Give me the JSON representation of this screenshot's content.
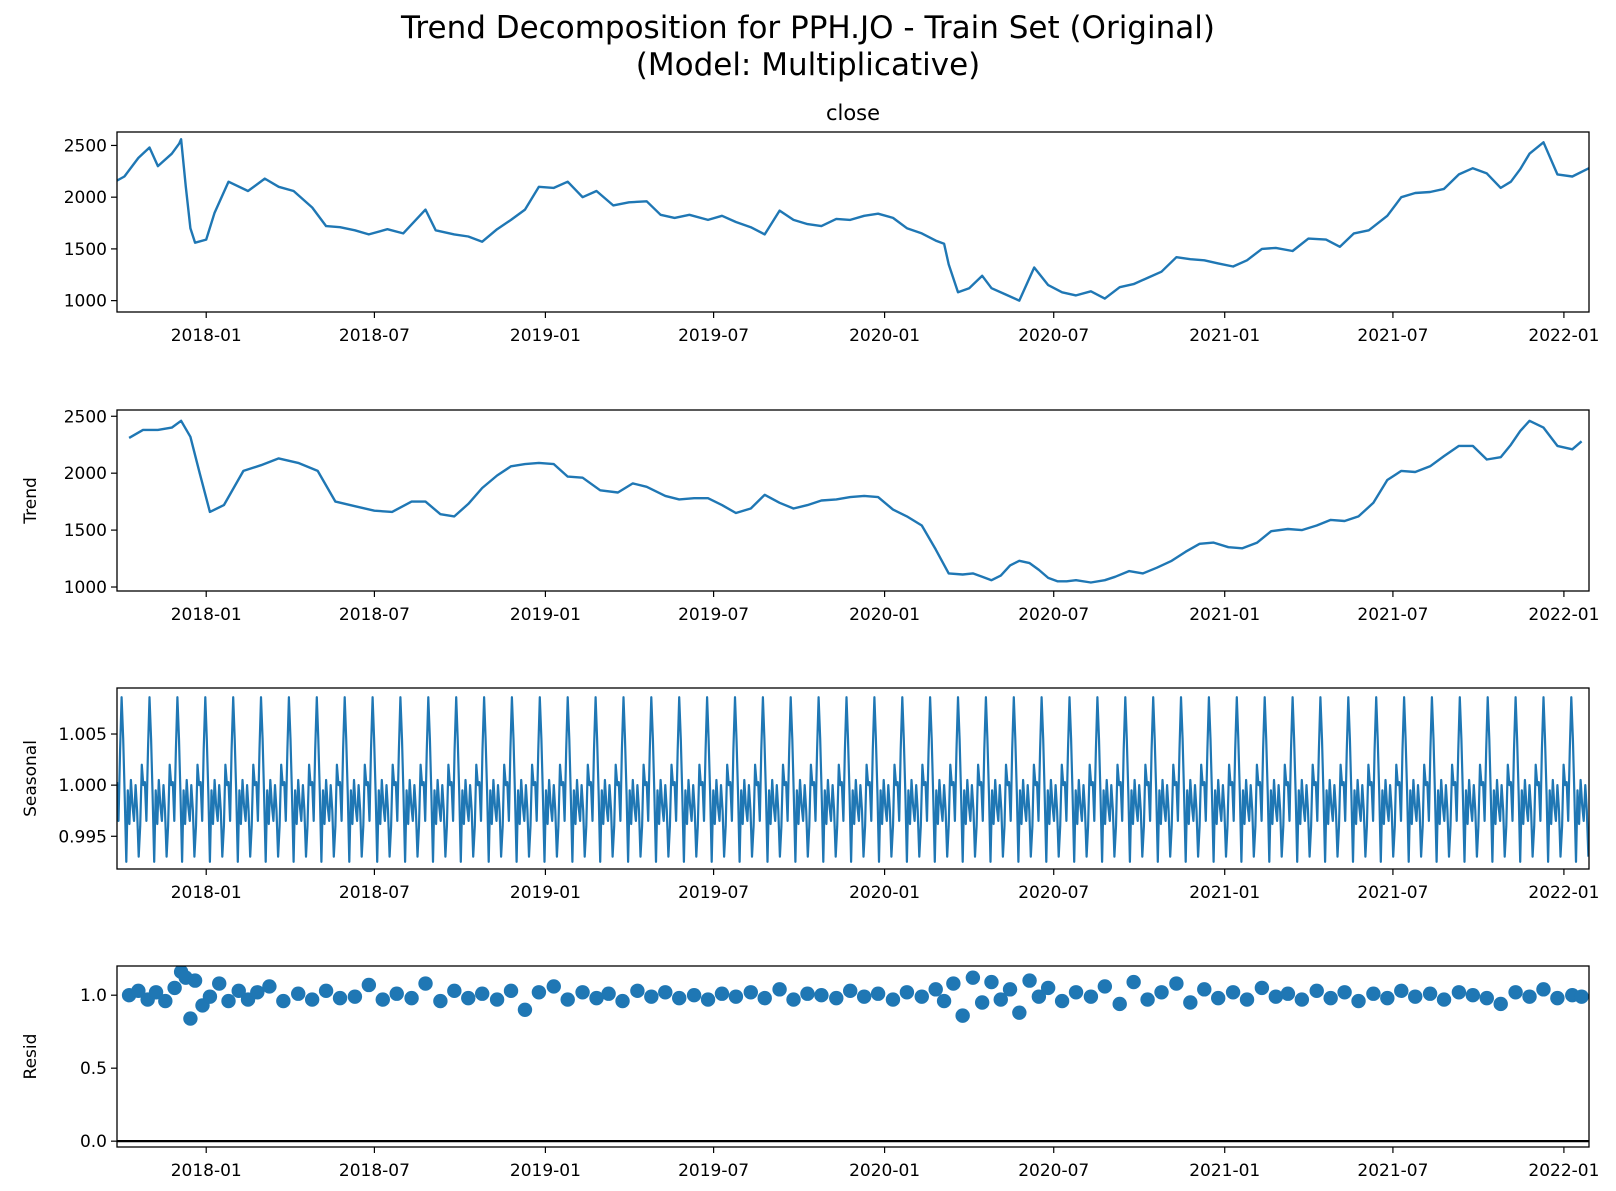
{
  "title_line1": "Trend Decomposition for PPH.JO - Train Set (Original)",
  "title_line2": "(Model: Multiplicative)",
  "line_color": "#1f77b4",
  "chart_data": [
    {
      "type": "line",
      "title": "close",
      "ylabel": "",
      "xlim": [
        "2017-09-27",
        "2022-01-28"
      ],
      "ylim": [
        890,
        2630
      ],
      "yticks": [
        1000,
        1500,
        2000,
        2500
      ],
      "ytick_labels": [
        "1000",
        "1500",
        "2000",
        "2500"
      ],
      "xticks": [
        "2018-01-01",
        "2018-07-01",
        "2019-01-01",
        "2019-07-01",
        "2020-01-01",
        "2020-07-01",
        "2021-01-01",
        "2021-07-01",
        "2022-01-01"
      ],
      "xtick_labels": [
        "2018-01",
        "2018-07",
        "2019-01",
        "2019-07",
        "2020-01",
        "2020-07",
        "2021-01",
        "2021-07",
        "2022-01"
      ],
      "x": [
        "2017-09-27",
        "2017-10-05",
        "2017-10-20",
        "2017-11-01",
        "2017-11-10",
        "2017-11-25",
        "2017-12-03",
        "2017-12-05",
        "2017-12-10",
        "2017-12-15",
        "2017-12-20",
        "2018-01-01",
        "2018-01-10",
        "2018-01-25",
        "2018-02-15",
        "2018-03-05",
        "2018-03-20",
        "2018-04-05",
        "2018-04-25",
        "2018-05-10",
        "2018-05-25",
        "2018-06-10",
        "2018-06-25",
        "2018-07-15",
        "2018-08-01",
        "2018-08-25",
        "2018-09-05",
        "2018-09-25",
        "2018-10-10",
        "2018-10-25",
        "2018-11-10",
        "2018-11-25",
        "2018-12-10",
        "2018-12-25",
        "2019-01-10",
        "2019-01-25",
        "2019-02-10",
        "2019-02-25",
        "2019-03-15",
        "2019-04-01",
        "2019-04-20",
        "2019-05-05",
        "2019-05-20",
        "2019-06-05",
        "2019-06-25",
        "2019-07-10",
        "2019-07-25",
        "2019-08-10",
        "2019-08-25",
        "2019-09-10",
        "2019-09-25",
        "2019-10-10",
        "2019-10-25",
        "2019-11-10",
        "2019-11-25",
        "2019-12-10",
        "2019-12-25",
        "2020-01-10",
        "2020-01-25",
        "2020-02-10",
        "2020-02-25",
        "2020-03-05",
        "2020-03-10",
        "2020-03-20",
        "2020-04-01",
        "2020-04-15",
        "2020-04-25",
        "2020-05-10",
        "2020-05-25",
        "2020-06-10",
        "2020-06-25",
        "2020-07-10",
        "2020-07-25",
        "2020-08-10",
        "2020-08-25",
        "2020-09-10",
        "2020-09-25",
        "2020-10-10",
        "2020-10-25",
        "2020-11-10",
        "2020-11-25",
        "2020-12-10",
        "2020-12-25",
        "2021-01-10",
        "2021-01-25",
        "2021-02-10",
        "2021-02-25",
        "2021-03-15",
        "2021-04-01",
        "2021-04-20",
        "2021-05-05",
        "2021-05-20",
        "2021-06-05",
        "2021-06-25",
        "2021-07-10",
        "2021-07-25",
        "2021-08-10",
        "2021-08-25",
        "2021-09-10",
        "2021-09-25",
        "2021-10-10",
        "2021-10-25",
        "2021-11-05",
        "2021-11-15",
        "2021-11-25",
        "2021-12-10",
        "2021-12-25",
        "2022-01-10",
        "2022-01-28"
      ],
      "y": [
        2160,
        2200,
        2380,
        2480,
        2300,
        2420,
        2520,
        2560,
        2100,
        1700,
        1560,
        1590,
        1850,
        2150,
        2060,
        2180,
        2100,
        2060,
        1900,
        1720,
        1710,
        1680,
        1640,
        1690,
        1650,
        1880,
        1680,
        1640,
        1620,
        1570,
        1690,
        1780,
        1880,
        2100,
        2090,
        2150,
        2000,
        2060,
        1920,
        1950,
        1960,
        1830,
        1800,
        1830,
        1780,
        1820,
        1760,
        1710,
        1640,
        1870,
        1780,
        1740,
        1720,
        1790,
        1780,
        1820,
        1840,
        1800,
        1700,
        1650,
        1580,
        1550,
        1350,
        1080,
        1120,
        1240,
        1120,
        1060,
        1000,
        1320,
        1150,
        1080,
        1050,
        1090,
        1020,
        1130,
        1160,
        1220,
        1280,
        1420,
        1400,
        1390,
        1360,
        1330,
        1390,
        1500,
        1510,
        1480,
        1600,
        1590,
        1520,
        1650,
        1680,
        1820,
        2000,
        2040,
        2050,
        2080,
        2220,
        2280,
        2230,
        2090,
        2150,
        2270,
        2420,
        2530,
        2220,
        2200,
        2280
      ]
    },
    {
      "type": "line",
      "title": "",
      "ylabel": "Trend",
      "xlim": [
        "2017-09-27",
        "2022-01-28"
      ],
      "ylim": [
        965,
        2555
      ],
      "yticks": [
        1000,
        1500,
        2000,
        2500
      ],
      "ytick_labels": [
        "1000",
        "1500",
        "2000",
        "2500"
      ],
      "xticks": [
        "2018-01-01",
        "2018-07-01",
        "2019-01-01",
        "2019-07-01",
        "2020-01-01",
        "2020-07-01",
        "2021-01-01",
        "2021-07-01",
        "2022-01-01"
      ],
      "xtick_labels": [
        "2018-01",
        "2018-07",
        "2019-01",
        "2019-07",
        "2020-01",
        "2020-07",
        "2021-01",
        "2021-07",
        "2022-01"
      ],
      "x": [
        "2017-10-10",
        "2017-10-25",
        "2017-11-10",
        "2017-11-25",
        "2017-12-05",
        "2017-12-15",
        "2017-12-25",
        "2018-01-05",
        "2018-01-20",
        "2018-02-10",
        "2018-03-01",
        "2018-03-20",
        "2018-04-10",
        "2018-05-01",
        "2018-05-20",
        "2018-06-10",
        "2018-07-01",
        "2018-07-20",
        "2018-08-10",
        "2018-08-25",
        "2018-09-10",
        "2018-09-25",
        "2018-10-10",
        "2018-10-25",
        "2018-11-10",
        "2018-11-25",
        "2018-12-10",
        "2018-12-25",
        "2019-01-10",
        "2019-01-25",
        "2019-02-10",
        "2019-03-01",
        "2019-03-20",
        "2019-04-05",
        "2019-04-20",
        "2019-05-10",
        "2019-05-25",
        "2019-06-10",
        "2019-06-25",
        "2019-07-10",
        "2019-07-25",
        "2019-08-10",
        "2019-08-25",
        "2019-09-10",
        "2019-09-25",
        "2019-10-10",
        "2019-10-25",
        "2019-11-10",
        "2019-11-25",
        "2019-12-10",
        "2019-12-25",
        "2020-01-10",
        "2020-01-25",
        "2020-02-10",
        "2020-02-25",
        "2020-03-10",
        "2020-03-25",
        "2020-04-05",
        "2020-04-15",
        "2020-04-25",
        "2020-05-05",
        "2020-05-15",
        "2020-05-25",
        "2020-06-05",
        "2020-06-15",
        "2020-06-25",
        "2020-07-05",
        "2020-07-15",
        "2020-07-25",
        "2020-08-10",
        "2020-08-25",
        "2020-09-05",
        "2020-09-20",
        "2020-10-05",
        "2020-10-20",
        "2020-11-05",
        "2020-11-20",
        "2020-12-05",
        "2020-12-20",
        "2021-01-05",
        "2021-01-20",
        "2021-02-05",
        "2021-02-20",
        "2021-03-10",
        "2021-03-25",
        "2021-04-10",
        "2021-04-25",
        "2021-05-10",
        "2021-05-25",
        "2021-06-10",
        "2021-06-25",
        "2021-07-10",
        "2021-07-25",
        "2021-08-10",
        "2021-08-25",
        "2021-09-10",
        "2021-09-25",
        "2021-10-10",
        "2021-10-25",
        "2021-11-05",
        "2021-11-15",
        "2021-11-25",
        "2021-12-10",
        "2021-12-25",
        "2022-01-10",
        "2022-01-20"
      ],
      "y": [
        2310,
        2380,
        2380,
        2400,
        2460,
        2320,
        2000,
        1660,
        1720,
        2020,
        2070,
        2130,
        2090,
        2020,
        1750,
        1710,
        1670,
        1660,
        1750,
        1750,
        1640,
        1620,
        1730,
        1870,
        1980,
        2060,
        2080,
        2090,
        2080,
        1970,
        1960,
        1850,
        1830,
        1910,
        1880,
        1800,
        1770,
        1780,
        1780,
        1720,
        1650,
        1690,
        1810,
        1740,
        1690,
        1720,
        1760,
        1770,
        1790,
        1800,
        1790,
        1680,
        1620,
        1540,
        1330,
        1120,
        1110,
        1120,
        1090,
        1060,
        1100,
        1190,
        1230,
        1210,
        1150,
        1080,
        1050,
        1050,
        1060,
        1040,
        1060,
        1090,
        1140,
        1120,
        1170,
        1230,
        1310,
        1380,
        1390,
        1350,
        1340,
        1390,
        1490,
        1510,
        1500,
        1540,
        1590,
        1580,
        1620,
        1740,
        1940,
        2020,
        2010,
        2060,
        2150,
        2240,
        2240,
        2120,
        2140,
        2250,
        2370,
        2460,
        2400,
        2240,
        2210,
        2280
      ]
    },
    {
      "type": "line",
      "title": "",
      "ylabel": "Seasonal",
      "xlim": [
        "2017-09-27",
        "2022-01-28"
      ],
      "ylim": [
        0.9918,
        1.0095
      ],
      "yticks": [
        0.995,
        1.0,
        1.005
      ],
      "ytick_labels": [
        "0.995",
        "1.000",
        "1.005"
      ],
      "xticks": [
        "2018-01-01",
        "2018-07-01",
        "2019-01-01",
        "2019-07-01",
        "2020-01-01",
        "2020-07-01",
        "2021-01-01",
        "2021-07-01",
        "2022-01-01"
      ],
      "xtick_labels": [
        "2018-01",
        "2018-07",
        "2019-01",
        "2019-07",
        "2020-01",
        "2020-07",
        "2021-01",
        "2021-07",
        "2022-01"
      ],
      "period_days": 30,
      "cycle": [
        1.0003,
        0.9965,
        1.0035,
        1.0086,
        1.0045,
        0.999,
        0.9925,
        0.9995,
        0.9962,
        1.0005,
        0.998,
        0.9965,
        1.0,
        0.9975,
        0.993,
        0.996,
        1.002,
        1.0
      ]
    },
    {
      "type": "scatter",
      "title": "",
      "ylabel": "Resid",
      "xlim": [
        "2017-09-27",
        "2022-01-28"
      ],
      "ylim": [
        -0.04,
        1.2
      ],
      "yticks": [
        0.0,
        0.5,
        1.0
      ],
      "ytick_labels": [
        "0.0",
        "0.5",
        "1.0"
      ],
      "baseline": 0,
      "xticks": [
        "2018-01-01",
        "2018-07-01",
        "2019-01-01",
        "2019-07-01",
        "2020-01-01",
        "2020-07-01",
        "2021-01-01",
        "2021-07-01",
        "2022-01-01"
      ],
      "xtick_labels": [
        "2018-01",
        "2018-07",
        "2019-01",
        "2019-07",
        "2020-01",
        "2020-07",
        "2021-01",
        "2021-07",
        "2022-01"
      ],
      "x": [
        "2017-10-10",
        "2017-10-20",
        "2017-10-30",
        "2017-11-08",
        "2017-11-18",
        "2017-11-28",
        "2017-12-05",
        "2017-12-10",
        "2017-12-15",
        "2017-12-20",
        "2017-12-28",
        "2018-01-05",
        "2018-01-15",
        "2018-01-25",
        "2018-02-05",
        "2018-02-15",
        "2018-02-25",
        "2018-03-10",
        "2018-03-25",
        "2018-04-10",
        "2018-04-25",
        "2018-05-10",
        "2018-05-25",
        "2018-06-10",
        "2018-06-25",
        "2018-07-10",
        "2018-07-25",
        "2018-08-10",
        "2018-08-25",
        "2018-09-10",
        "2018-09-25",
        "2018-10-10",
        "2018-10-25",
        "2018-11-10",
        "2018-11-25",
        "2018-12-10",
        "2018-12-25",
        "2019-01-10",
        "2019-01-25",
        "2019-02-10",
        "2019-02-25",
        "2019-03-10",
        "2019-03-25",
        "2019-04-10",
        "2019-04-25",
        "2019-05-10",
        "2019-05-25",
        "2019-06-10",
        "2019-06-25",
        "2019-07-10",
        "2019-07-25",
        "2019-08-10",
        "2019-08-25",
        "2019-09-10",
        "2019-09-25",
        "2019-10-10",
        "2019-10-25",
        "2019-11-10",
        "2019-11-25",
        "2019-12-10",
        "2019-12-25",
        "2020-01-10",
        "2020-01-25",
        "2020-02-10",
        "2020-02-25",
        "2020-03-05",
        "2020-03-15",
        "2020-03-25",
        "2020-04-05",
        "2020-04-15",
        "2020-04-25",
        "2020-05-05",
        "2020-05-15",
        "2020-05-25",
        "2020-06-05",
        "2020-06-15",
        "2020-06-25",
        "2020-07-10",
        "2020-07-25",
        "2020-08-10",
        "2020-08-25",
        "2020-09-10",
        "2020-09-25",
        "2020-10-10",
        "2020-10-25",
        "2020-11-10",
        "2020-11-25",
        "2020-12-10",
        "2020-12-25",
        "2021-01-10",
        "2021-01-25",
        "2021-02-10",
        "2021-02-25",
        "2021-03-10",
        "2021-03-25",
        "2021-04-10",
        "2021-04-25",
        "2021-05-10",
        "2021-05-25",
        "2021-06-10",
        "2021-06-25",
        "2021-07-10",
        "2021-07-25",
        "2021-08-10",
        "2021-08-25",
        "2021-09-10",
        "2021-09-25",
        "2021-10-10",
        "2021-10-25",
        "2021-11-10",
        "2021-11-25",
        "2021-12-10",
        "2021-12-25",
        "2022-01-10",
        "2022-01-20"
      ],
      "y": [
        1.0,
        1.03,
        0.97,
        1.02,
        0.96,
        1.05,
        1.16,
        1.12,
        0.84,
        1.1,
        0.93,
        0.99,
        1.08,
        0.96,
        1.03,
        0.97,
        1.02,
        1.06,
        0.96,
        1.01,
        0.97,
        1.03,
        0.98,
        0.99,
        1.07,
        0.97,
        1.01,
        0.98,
        1.08,
        0.96,
        1.03,
        0.98,
        1.01,
        0.97,
        1.03,
        0.9,
        1.02,
        1.06,
        0.97,
        1.02,
        0.98,
        1.01,
        0.96,
        1.03,
        0.99,
        1.02,
        0.98,
        1.0,
        0.97,
        1.01,
        0.99,
        1.02,
        0.98,
        1.04,
        0.97,
        1.01,
        1.0,
        0.98,
        1.03,
        0.99,
        1.01,
        0.97,
        1.02,
        0.99,
        1.04,
        0.96,
        1.08,
        0.86,
        1.12,
        0.95,
        1.09,
        0.97,
        1.04,
        0.88,
        1.1,
        0.99,
        1.05,
        0.96,
        1.02,
        0.99,
        1.06,
        0.94,
        1.09,
        0.97,
        1.02,
        1.08,
        0.95,
        1.04,
        0.98,
        1.02,
        0.97,
        1.05,
        0.99,
        1.01,
        0.97,
        1.03,
        0.98,
        1.02,
        0.96,
        1.01,
        0.98,
        1.03,
        0.99,
        1.01,
        0.97,
        1.02,
        1.0,
        0.98,
        0.94,
        1.02,
        0.99,
        1.04,
        0.98,
        1.0,
        0.99
      ]
    }
  ]
}
